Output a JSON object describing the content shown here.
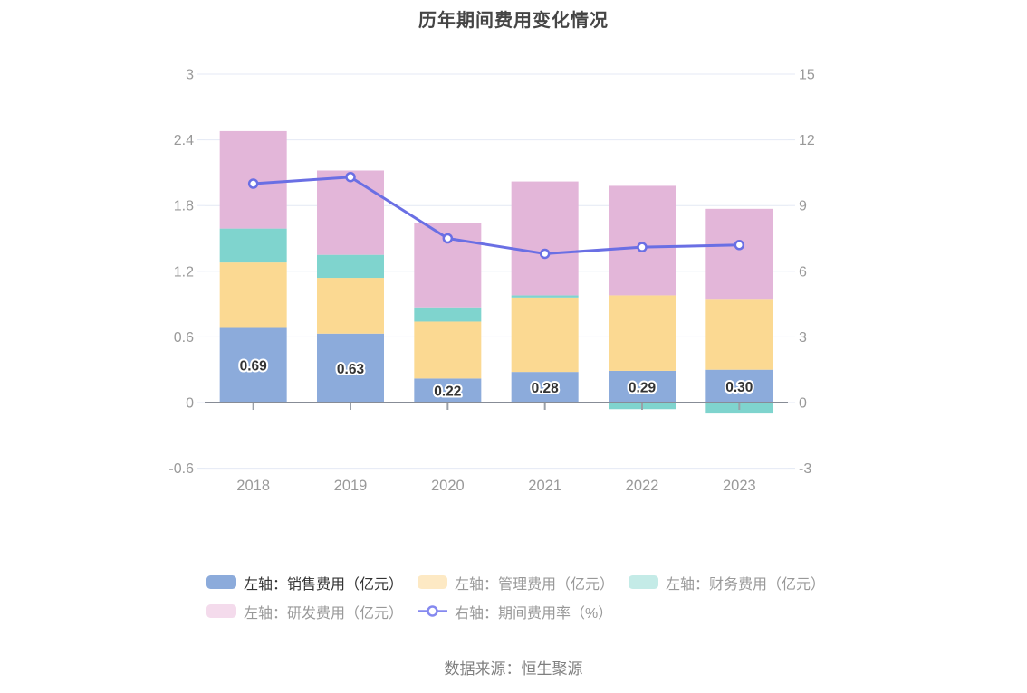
{
  "title": "历年期间费用变化情况",
  "source": "数据来源：恒生聚源",
  "chart_data": {
    "type": "bar",
    "subtype": "stacked-bars-with-line-dual-axis",
    "title": "历年期间费用变化情况",
    "categories": [
      "2018",
      "2019",
      "2020",
      "2021",
      "2022",
      "2023"
    ],
    "series": [
      {
        "key": "sales-expense",
        "name": "左轴：销售费用（亿元）",
        "type": "bar",
        "axis": "left",
        "color": "#8CABDB",
        "values": [
          0.69,
          0.63,
          0.22,
          0.28,
          0.29,
          0.3
        ],
        "data_labels": [
          "0.69",
          "0.63",
          "0.22",
          "0.28",
          "0.29",
          "0.30"
        ]
      },
      {
        "key": "admin-expense",
        "name": "左轴：管理费用（亿元）",
        "type": "bar",
        "axis": "left",
        "color": "#FBD992",
        "values": [
          0.59,
          0.51,
          0.52,
          0.68,
          0.69,
          0.64
        ]
      },
      {
        "key": "finance-expense",
        "name": "左轴：财务费用（亿元）",
        "type": "bar",
        "axis": "left",
        "color": "#7FD4CE",
        "values": [
          0.31,
          0.21,
          0.13,
          0.02,
          -0.06,
          -0.1
        ]
      },
      {
        "key": "rnd-expense",
        "name": "左轴：研发费用（亿元）",
        "type": "bar",
        "axis": "left",
        "color": "#E3B6D9",
        "values": [
          0.89,
          0.77,
          0.77,
          1.04,
          1.0,
          0.83
        ]
      },
      {
        "key": "expense-ratio",
        "name": "右轴：期间费用率（%）",
        "type": "line",
        "axis": "right",
        "color": "#6A6FE4",
        "marker": "empty-circle",
        "values": [
          10.0,
          10.3,
          7.5,
          6.8,
          7.1,
          7.2
        ]
      }
    ],
    "left_axis": {
      "min": -0.6,
      "max": 3,
      "ticks": [
        "3",
        "2.4",
        "1.8",
        "1.2",
        "0.6",
        "0",
        "-0.6"
      ]
    },
    "right_axis": {
      "min": -3,
      "max": 15,
      "ticks": [
        "15",
        "12",
        "9",
        "6",
        "3",
        "0",
        "-3"
      ]
    },
    "grid": true,
    "legend_position": "bottom",
    "stacked": true
  },
  "legend": {
    "rows": [
      [
        {
          "key": "sales-expense",
          "label": "左轴：销售费用（亿元）",
          "icon": "bar",
          "swatch": "#8CABDB",
          "text_color": "#333333"
        },
        {
          "key": "admin-expense",
          "label": "左轴：管理费用（亿元）",
          "icon": "bar",
          "swatch": "#FDE9C4",
          "text_color": "#999999"
        },
        {
          "key": "finance-expense",
          "label": "左轴：财务费用（亿元）",
          "icon": "bar",
          "swatch": "#C4EBE7",
          "text_color": "#999999"
        }
      ],
      [
        {
          "key": "rnd-expense",
          "label": "左轴：研发费用（亿元）",
          "icon": "bar",
          "swatch": "#F4DBEC",
          "text_color": "#999999"
        },
        {
          "key": "expense-ratio",
          "label": "右轴：期间费用率（%）",
          "icon": "line",
          "swatch": "#8589EF",
          "text_color": "#999999"
        }
      ]
    ]
  },
  "style_colors": {
    "gridline": "#E4E9F4",
    "zero_axis_line": "#878C96",
    "axis_label": "#999999",
    "category_tick": "#9AA0A8",
    "bar_value_label": "#333333",
    "title": "#454545",
    "source_text": "#7F7F7F"
  }
}
